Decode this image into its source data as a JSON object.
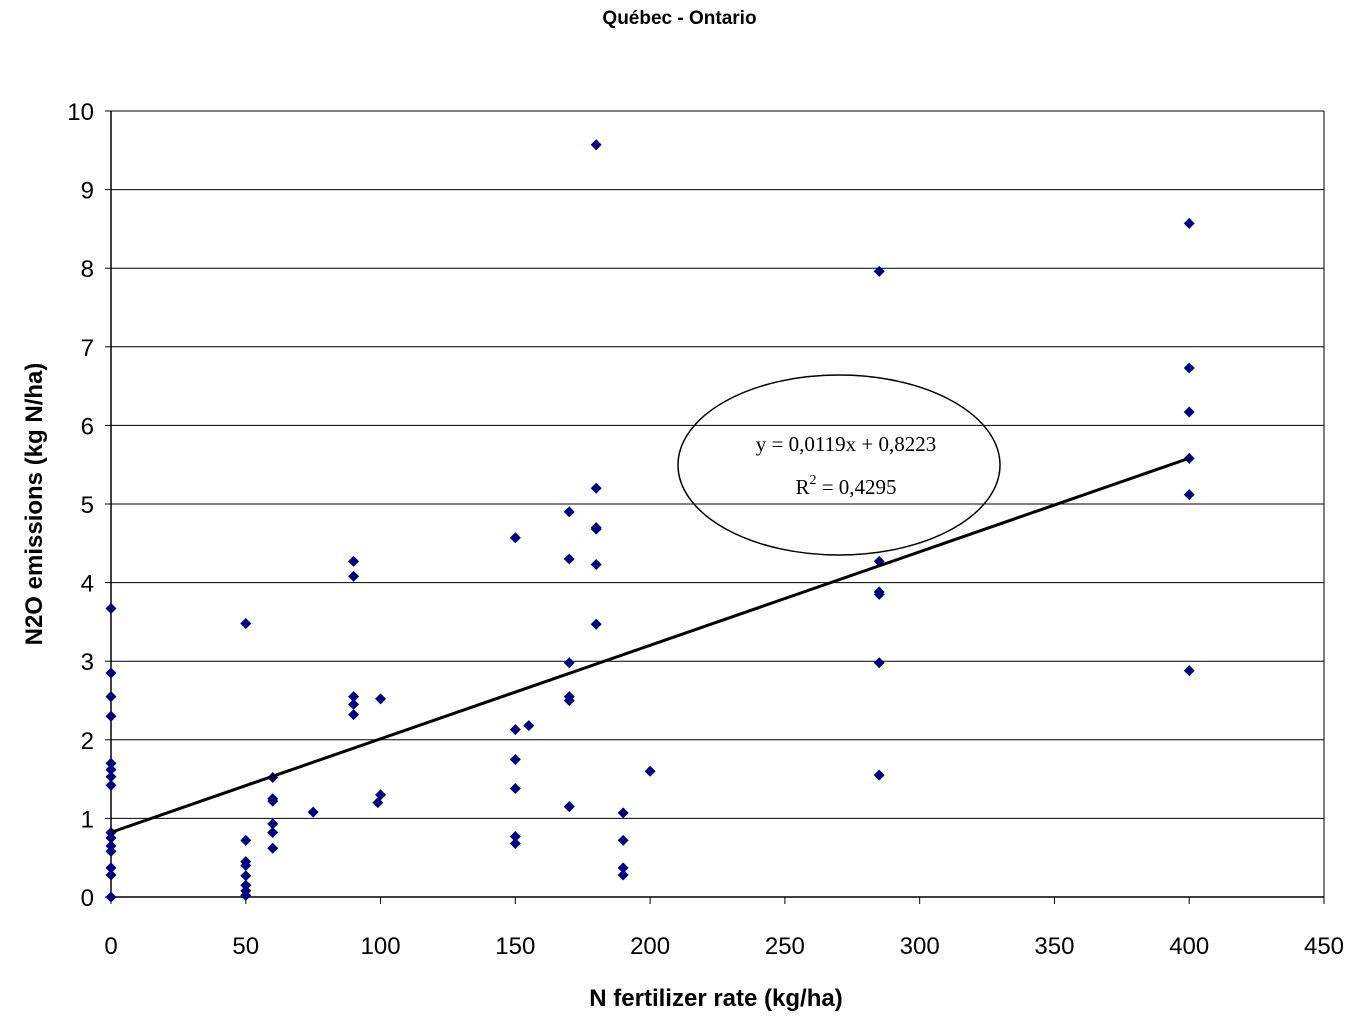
{
  "chart_data": {
    "type": "scatter",
    "title": "Québec - Ontario",
    "xlabel": "N fertilizer rate (kg/ha)",
    "ylabel": "N2O emissions (kg N/ha)",
    "xlim": [
      0,
      450
    ],
    "ylim": [
      0,
      10
    ],
    "xticks": [
      "0",
      "50",
      "100",
      "150",
      "200",
      "250",
      "300",
      "350",
      "400",
      "450"
    ],
    "yticks": [
      "0",
      "1",
      "2",
      "3",
      "4",
      "5",
      "6",
      "7",
      "8",
      "9",
      "10"
    ],
    "grid": "horizontal",
    "marker_color": "#000080",
    "points": [
      [
        0,
        3.67
      ],
      [
        0,
        2.85
      ],
      [
        0,
        2.55
      ],
      [
        0,
        2.3
      ],
      [
        0,
        1.7
      ],
      [
        0,
        1.62
      ],
      [
        0,
        1.53
      ],
      [
        0,
        1.42
      ],
      [
        0,
        0.82
      ],
      [
        0,
        0.75
      ],
      [
        0,
        0.65
      ],
      [
        0,
        0.58
      ],
      [
        0,
        0.37
      ],
      [
        0,
        0.28
      ],
      [
        0,
        0.0
      ],
      [
        50,
        3.48
      ],
      [
        50,
        0.72
      ],
      [
        50,
        0.45
      ],
      [
        50,
        0.4
      ],
      [
        50,
        0.27
      ],
      [
        50,
        0.15
      ],
      [
        50,
        0.08
      ],
      [
        50,
        0.02
      ],
      [
        60,
        1.52
      ],
      [
        60,
        1.25
      ],
      [
        60,
        1.22
      ],
      [
        60,
        0.93
      ],
      [
        60,
        0.82
      ],
      [
        60,
        0.62
      ],
      [
        75,
        1.08
      ],
      [
        90,
        4.27
      ],
      [
        90,
        4.08
      ],
      [
        90,
        2.55
      ],
      [
        90,
        2.45
      ],
      [
        90,
        2.32
      ],
      [
        99,
        1.2
      ],
      [
        100,
        1.3
      ],
      [
        100,
        2.52
      ],
      [
        150,
        4.57
      ],
      [
        150,
        2.13
      ],
      [
        150,
        1.75
      ],
      [
        150,
        1.38
      ],
      [
        150,
        0.77
      ],
      [
        150,
        0.68
      ],
      [
        155,
        2.18
      ],
      [
        170,
        4.9
      ],
      [
        170,
        4.3
      ],
      [
        170,
        2.98
      ],
      [
        170,
        2.55
      ],
      [
        170,
        2.5
      ],
      [
        170,
        1.15
      ],
      [
        180,
        9.57
      ],
      [
        180,
        5.2
      ],
      [
        180,
        4.7
      ],
      [
        180,
        4.68
      ],
      [
        180,
        4.23
      ],
      [
        180,
        3.47
      ],
      [
        190,
        1.07
      ],
      [
        190,
        0.72
      ],
      [
        190,
        0.37
      ],
      [
        190,
        0.28
      ],
      [
        200,
        1.6
      ],
      [
        285,
        7.96
      ],
      [
        285,
        4.27
      ],
      [
        285,
        3.88
      ],
      [
        285,
        3.85
      ],
      [
        285,
        2.98
      ],
      [
        285,
        1.55
      ],
      [
        400,
        8.57
      ],
      [
        400,
        6.73
      ],
      [
        400,
        6.17
      ],
      [
        400,
        5.58
      ],
      [
        400,
        5.12
      ],
      [
        400,
        2.88
      ]
    ],
    "trendline": {
      "slope": 0.0119,
      "intercept": 0.8223,
      "x_range": [
        0,
        400
      ]
    },
    "annotation": {
      "equation": "y = 0,0119x + 0,8223",
      "r2_prefix": "R",
      "r2_sup": "2",
      "r2_value": " = 0,4295"
    }
  }
}
